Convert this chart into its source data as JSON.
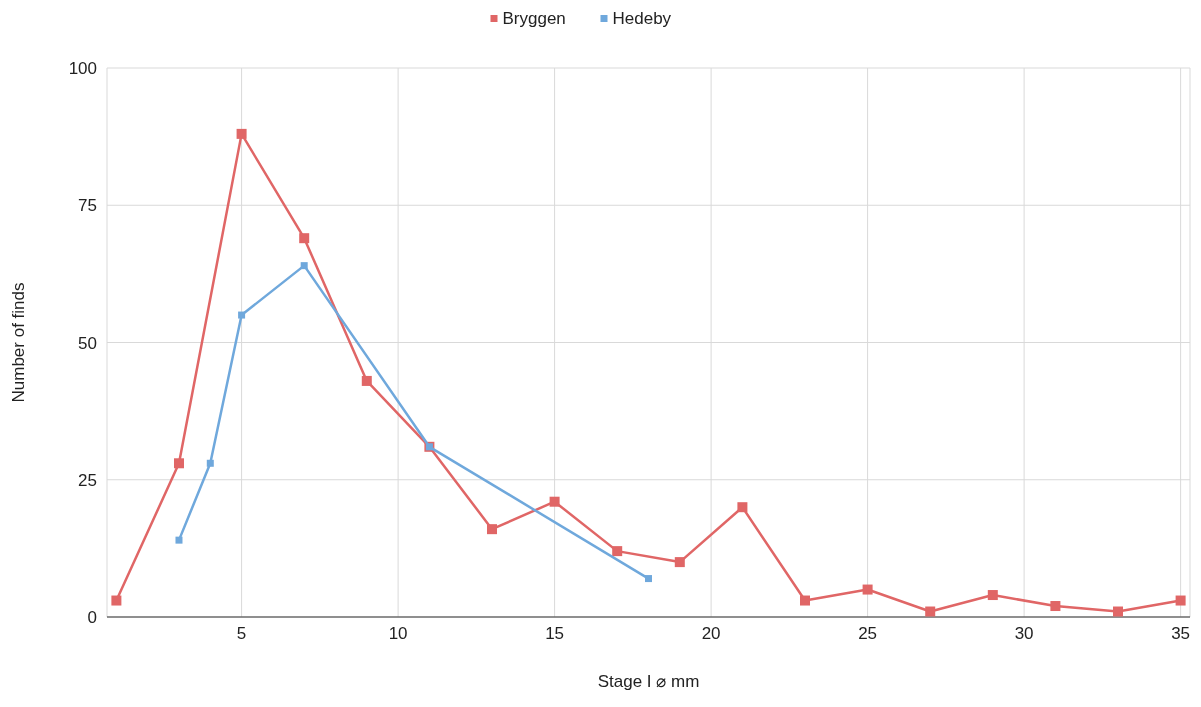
{
  "chart_data": {
    "type": "line",
    "xlabel": "Stage I ⌀ mm",
    "ylabel": "Number of finds",
    "xlim": [
      0.7,
      35.3
    ],
    "xticks": [
      5,
      10,
      15,
      20,
      25,
      30,
      35
    ],
    "ylim": [
      0,
      100
    ],
    "yticks": [
      0,
      25,
      50,
      75,
      100
    ],
    "grid": true,
    "legend": "top",
    "marker": "square",
    "line_style": "solid",
    "series": [
      {
        "name": "Bryggen",
        "color": "#e06666",
        "x": [
          1,
          3,
          5,
          7,
          9,
          11,
          13,
          15,
          17,
          19,
          21,
          23,
          25,
          27,
          29,
          31,
          33,
          35
        ],
        "values": [
          3,
          28,
          88,
          69,
          43,
          31,
          16,
          21,
          12,
          10,
          20,
          3,
          5,
          1,
          4,
          2,
          1,
          3
        ]
      },
      {
        "name": "Hedeby",
        "color": "#6fa8dc",
        "x": [
          3,
          4,
          5,
          7,
          11,
          18
        ],
        "values": [
          14,
          28,
          55,
          64,
          31,
          7
        ]
      }
    ]
  }
}
